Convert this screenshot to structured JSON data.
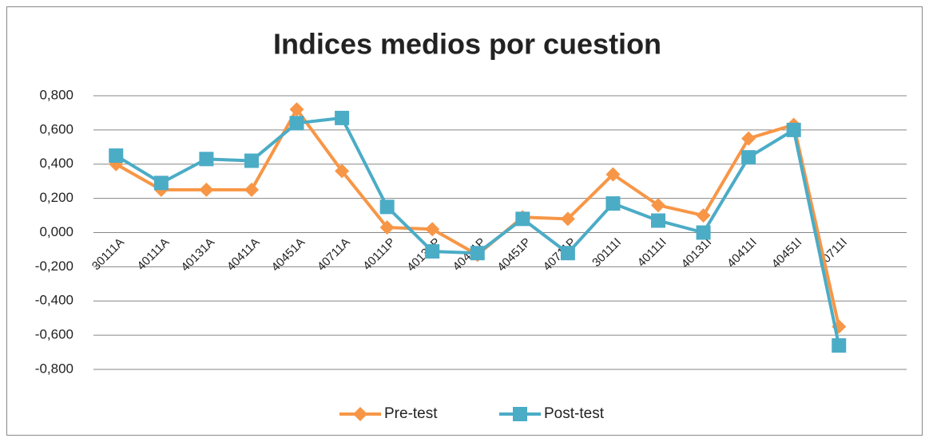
{
  "chart_data": {
    "type": "line",
    "title": "Indices medios por cuestion",
    "categories": [
      "30111A",
      "40111A",
      "40131A",
      "40411A",
      "40451A",
      "40711A",
      "40111P",
      "40131P",
      "40411P",
      "40451P",
      "40711P",
      "30111I",
      "40111I",
      "40131I",
      "40411I",
      "40451I",
      "40711I"
    ],
    "series": [
      {
        "name": "Pre-test",
        "color": "#f79646",
        "marker": "diamond",
        "values": [
          0.4,
          0.25,
          0.25,
          0.25,
          0.72,
          0.36,
          0.03,
          0.02,
          -0.13,
          0.09,
          0.08,
          0.34,
          0.16,
          0.1,
          0.55,
          0.63,
          -0.55
        ]
      },
      {
        "name": "Post-test",
        "color": "#4bacc6",
        "marker": "square",
        "values": [
          0.45,
          0.29,
          0.43,
          0.42,
          0.64,
          0.67,
          0.15,
          -0.11,
          -0.12,
          0.08,
          -0.12,
          0.17,
          0.07,
          0.0,
          0.44,
          0.6,
          -0.66
        ]
      }
    ],
    "ylim": [
      -0.8,
      0.8
    ],
    "yticks": [
      {
        "value": -0.8,
        "label": "-0,800"
      },
      {
        "value": -0.6,
        "label": "-0,600"
      },
      {
        "value": -0.4,
        "label": "-0,400"
      },
      {
        "value": -0.2,
        "label": "-0,200"
      },
      {
        "value": 0,
        "label": "0,000"
      },
      {
        "value": 0.2,
        "label": "0,200"
      },
      {
        "value": 0.4,
        "label": "0,400"
      },
      {
        "value": 0.6,
        "label": "0,600"
      },
      {
        "value": 0.8,
        "label": "0,800"
      }
    ],
    "grid": true,
    "legend": "bottom"
  }
}
